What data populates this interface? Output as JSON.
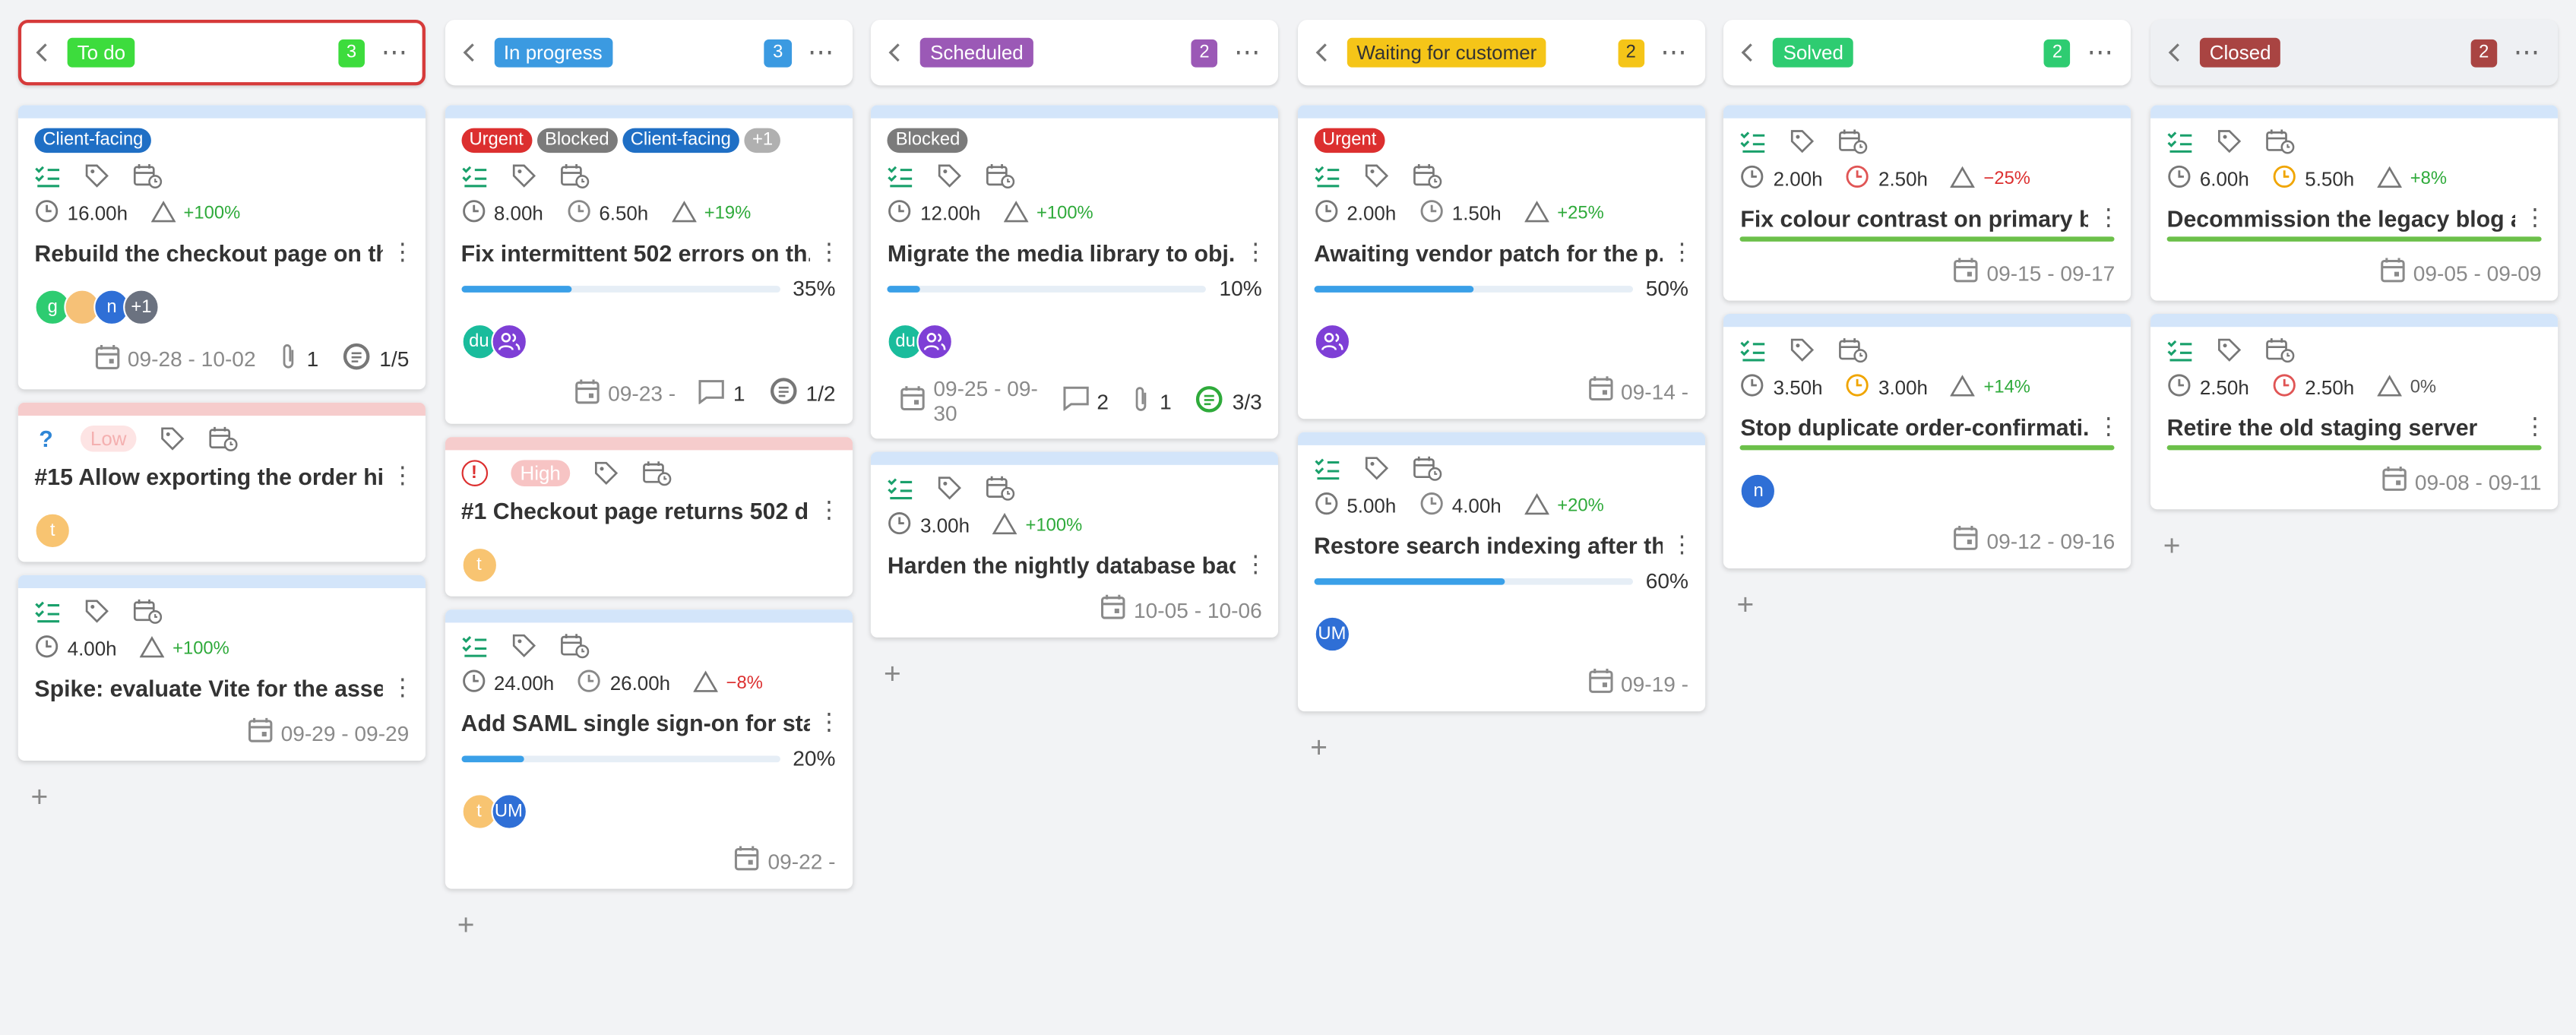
{
  "columns": [
    {
      "title": "To do",
      "count": "3",
      "color": "#3ddc3d",
      "text_color": "#ffffff",
      "selected": true,
      "cards": [
        {
          "bar_color": "#d3e5fa",
          "tags": [
            {
              "text": "Client-facing",
              "color": "#1f6fc5"
            }
          ],
          "estimate": "16.00h",
          "delta": "+100%",
          "delta_color": "#2eaa3a",
          "title": "Rebuild the checkout page on th...",
          "avatars": [
            {
              "initials": "g",
              "color": "#2ecc71"
            },
            {
              "color": "#f6c177"
            },
            {
              "initials": "n",
              "color": "#2f6fd6"
            },
            {
              "initials": "+1",
              "color": "#6b7280"
            }
          ],
          "dates": "09-28 - 10-02",
          "attachments": "1",
          "subtasks": "1/5"
        },
        {
          "bar_color": "#f6cccc",
          "priority_icon": {
            "symbol": "?",
            "color": "#2f86d6"
          },
          "priority": {
            "text": "Low",
            "bg": "#fde4e4",
            "color": "#f4b0b0"
          },
          "title": "#15 Allow exporting the order hi...",
          "avatars": [
            {
              "initials": "t",
              "color": "#f8c471"
            }
          ]
        },
        {
          "bar_color": "#d3e5fa",
          "estimate": "4.00h",
          "delta": "+100%",
          "delta_color": "#2eaa3a",
          "title": "Spike: evaluate Vite for the asset...",
          "dates": "09-29 - 09-29"
        }
      ]
    },
    {
      "title": "In progress",
      "count": "3",
      "color": "#3b9ae1",
      "text_color": "#ffffff",
      "cards": [
        {
          "bar_color": "#d3e5fa",
          "tags": [
            {
              "text": "Urgent",
              "color": "#dc2f2f"
            },
            {
              "text": "Blocked",
              "color": "#7b7b7b"
            },
            {
              "text": "Client-facing",
              "color": "#1f6fc5"
            },
            {
              "text": "+1",
              "color": "#b0b0b0"
            }
          ],
          "estimate": "8.00h",
          "spent": "6.50h",
          "spent_color": "#888888",
          "delta": "+19%",
          "delta_color": "#2eaa3a",
          "title": "Fix intermittent 502 errors on th...",
          "progress": {
            "value": 35,
            "label": "35%"
          },
          "avatars": [
            {
              "initials": "du",
              "color": "#1abc9c"
            },
            {
              "group": true,
              "color": "#7e3fd6"
            }
          ],
          "dates": "09-23 -",
          "comments": "1",
          "subtasks": "1/2"
        },
        {
          "bar_color": "#f6cccc",
          "priority_icon": {
            "symbol": "!",
            "color": "#dc2f2f"
          },
          "priority": {
            "text": "High",
            "bg": "#f7c4c4",
            "color": "#ffffff"
          },
          "title": "#1 Checkout page returns 502 d...",
          "avatars": [
            {
              "initials": "t",
              "color": "#f8c471"
            }
          ]
        },
        {
          "bar_color": "#d3e5fa",
          "estimate": "24.00h",
          "spent": "26.00h",
          "spent_color": "#888888",
          "delta": "−8%",
          "delta_color": "#dc2f2f",
          "title": "Add SAML single sign-on for staf...",
          "progress": {
            "value": 20,
            "label": "20%"
          },
          "avatars": [
            {
              "initials": "t",
              "color": "#f8c471"
            },
            {
              "initials": "UM",
              "color": "#2f6fd6"
            }
          ],
          "dates": "09-22 -"
        }
      ]
    },
    {
      "title": "Scheduled",
      "count": "2",
      "color": "#9b59b6",
      "text_color": "#ffffff",
      "cards": [
        {
          "bar_color": "#d3e5fa",
          "tags": [
            {
              "text": "Blocked",
              "color": "#7b7b7b"
            }
          ],
          "estimate": "12.00h",
          "delta": "+100%",
          "delta_color": "#2eaa3a",
          "title": "Migrate the media library to obj...",
          "progress": {
            "value": 10,
            "label": "10%"
          },
          "avatars": [
            {
              "initials": "du",
              "color": "#1abc9c"
            },
            {
              "group": true,
              "color": "#7e3fd6"
            }
          ],
          "dates": "09-25 - 09-30",
          "comments": "2",
          "attachments": "1",
          "subtasks": "3/3",
          "subtasks_color": "#2eaa3a"
        },
        {
          "bar_color": "#d3e5fa",
          "estimate": "3.00h",
          "delta": "+100%",
          "delta_color": "#2eaa3a",
          "title": "Harden the nightly database bac...",
          "dates": "10-05 - 10-06"
        }
      ]
    },
    {
      "title": "Waiting for customer",
      "count": "2",
      "color": "#f5c518",
      "text_color": "#333333",
      "cards": [
        {
          "bar_color": "#d3e5fa",
          "tags": [
            {
              "text": "Urgent",
              "color": "#dc2f2f"
            }
          ],
          "estimate": "2.00h",
          "spent": "1.50h",
          "spent_color": "#888888",
          "delta": "+25%",
          "delta_color": "#2eaa3a",
          "title": "Awaiting vendor patch for the p...",
          "progress": {
            "value": 50,
            "label": "50%"
          },
          "avatars": [
            {
              "group": true,
              "color": "#7e3fd6"
            }
          ],
          "dates": "09-14 -"
        },
        {
          "bar_color": "#d3e5fa",
          "estimate": "5.00h",
          "spent": "4.00h",
          "spent_color": "#888888",
          "delta": "+20%",
          "delta_color": "#2eaa3a",
          "title": "Restore search indexing after th...",
          "progress": {
            "value": 60,
            "label": "60%"
          },
          "avatars": [
            {
              "initials": "UM",
              "color": "#2f6fd6"
            }
          ],
          "dates": "09-19 -"
        }
      ]
    },
    {
      "title": "Solved",
      "count": "2",
      "color": "#2ecc71",
      "text_color": "#ffffff",
      "cards": [
        {
          "bar_color": "#d3e5fa",
          "estimate": "2.00h",
          "spent": "2.50h",
          "spent_color": "#e05555",
          "delta": "−25%",
          "delta_color": "#dc2f2f",
          "title": "Fix colour contrast on primary b...",
          "completed": true,
          "dates": "09-15 - 09-17"
        },
        {
          "bar_color": "#d3e5fa",
          "estimate": "3.50h",
          "spent": "3.00h",
          "spent_color": "#f0a500",
          "delta": "+14%",
          "delta_color": "#2eaa3a",
          "title": "Stop duplicate order-confirmati...",
          "completed": true,
          "avatars": [
            {
              "initials": "n",
              "color": "#2f6fd6"
            }
          ],
          "dates": "09-12 - 09-16"
        }
      ]
    },
    {
      "title": "Closed",
      "count": "2",
      "color": "#a94442",
      "text_color": "#ffffff",
      "header_bg": "#eef0f3",
      "cards": [
        {
          "bar_color": "#d3e5fa",
          "estimate": "6.00h",
          "spent": "5.50h",
          "spent_color": "#f0a500",
          "delta": "+8%",
          "delta_color": "#2eaa3a",
          "title": "Decommission the legacy blog a...",
          "completed": true,
          "dates": "09-05 - 09-09"
        },
        {
          "bar_color": "#d3e5fa",
          "estimate": "2.50h",
          "spent": "2.50h",
          "spent_color": "#e05555",
          "delta": "0%",
          "delta_color": "#555555",
          "title": "Retire the old staging server",
          "completed": true,
          "dates": "09-08 - 09-11"
        }
      ]
    }
  ]
}
